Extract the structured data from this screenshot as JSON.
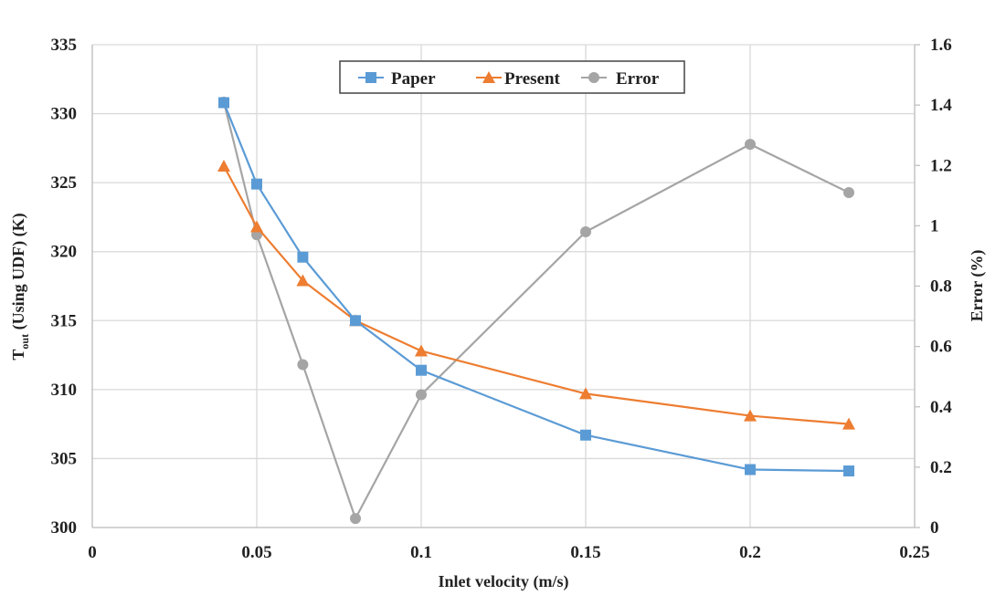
{
  "chart_data": {
    "type": "line",
    "title": "",
    "xlabel": "Inlet velocity (m/s)",
    "ylabel_left_main": "T",
    "ylabel_left_sub": "out",
    "ylabel_left_rest": " (Using UDF) (K)",
    "ylabel_right": "Error (%)",
    "xlim": [
      0,
      0.25
    ],
    "ylim_left": [
      300,
      335
    ],
    "ylim_right": [
      0,
      1.6
    ],
    "x_ticks": [
      "0",
      "0.05",
      "0.1",
      "0.15",
      "0.2",
      "0.25"
    ],
    "y_left_ticks": [
      "300",
      "305",
      "310",
      "315",
      "320",
      "325",
      "330",
      "335"
    ],
    "y_right_ticks": [
      "0",
      "0.2",
      "0.4",
      "0.6",
      "0.8",
      "1",
      "1.2",
      "1.4",
      "1.6"
    ],
    "grid": true,
    "legend_position": "top-center",
    "x": [
      0.04,
      0.05,
      0.064,
      0.08,
      0.1,
      0.15,
      0.2,
      0.23
    ],
    "series": [
      {
        "name": "Paper",
        "axis": "left",
        "marker": "square",
        "color": "#5B9BD5",
        "values": [
          330.8,
          324.9,
          319.6,
          315.0,
          311.4,
          306.7,
          304.2,
          304.1
        ]
      },
      {
        "name": "Present",
        "axis": "left",
        "marker": "triangle",
        "color": "#ED7D31",
        "values": [
          326.2,
          321.8,
          317.9,
          315.0,
          312.8,
          309.7,
          308.1,
          307.5
        ]
      },
      {
        "name": "Error",
        "axis": "right",
        "marker": "circle",
        "color": "#A5A5A5",
        "values": [
          1.41,
          0.97,
          0.54,
          0.03,
          0.44,
          0.98,
          1.27,
          1.11
        ]
      }
    ]
  }
}
